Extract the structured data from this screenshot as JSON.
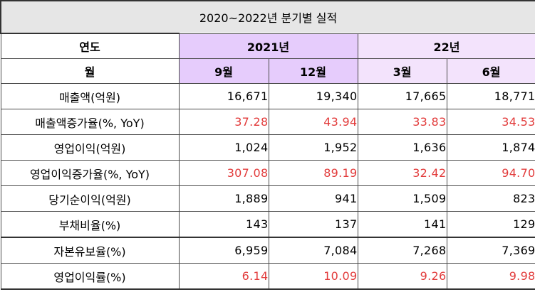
{
  "title": "2020~2022년 분기별 실적",
  "header": {
    "year_label": "연도",
    "year_2021": "2021년",
    "year_22": "22년",
    "month_label": "월",
    "months": [
      "9월",
      "12월",
      "3월",
      "6월"
    ]
  },
  "colors": {
    "header_2021": "#e6ccfc",
    "header_22": "#f3e3fc",
    "title_bg": "#e6e6e6",
    "highlight_red": "#e23b3b"
  },
  "rows": [
    {
      "label": "매출액(억원)",
      "values": [
        "16,671",
        "19,340",
        "17,665",
        "18,771"
      ],
      "red": false
    },
    {
      "label": "매출액증가율(%, YoY)",
      "values": [
        "37.28",
        "43.94",
        "33.83",
        "34.53"
      ],
      "red": true
    },
    {
      "label": "영업이익(억원)",
      "values": [
        "1,024",
        "1,952",
        "1,636",
        "1,874"
      ],
      "red": false
    },
    {
      "label": "영업이익증가율(%, YoY)",
      "values": [
        "307.08",
        "89.19",
        "32.42",
        "94.70"
      ],
      "red": true
    },
    {
      "label": "당기순이익(억원)",
      "values": [
        "1,889",
        "941",
        "1,509",
        "823"
      ],
      "red": false
    },
    {
      "label": "부채비율(%)",
      "values": [
        "143",
        "137",
        "141",
        "129"
      ],
      "red": false
    },
    {
      "label": "자본유보율(%)",
      "values": [
        "6,959",
        "7,084",
        "7,268",
        "7,369"
      ],
      "red": false
    },
    {
      "label": "영업이익률(%)",
      "values": [
        "6.14",
        "10.09",
        "9.26",
        "9.98"
      ],
      "red": true
    }
  ]
}
